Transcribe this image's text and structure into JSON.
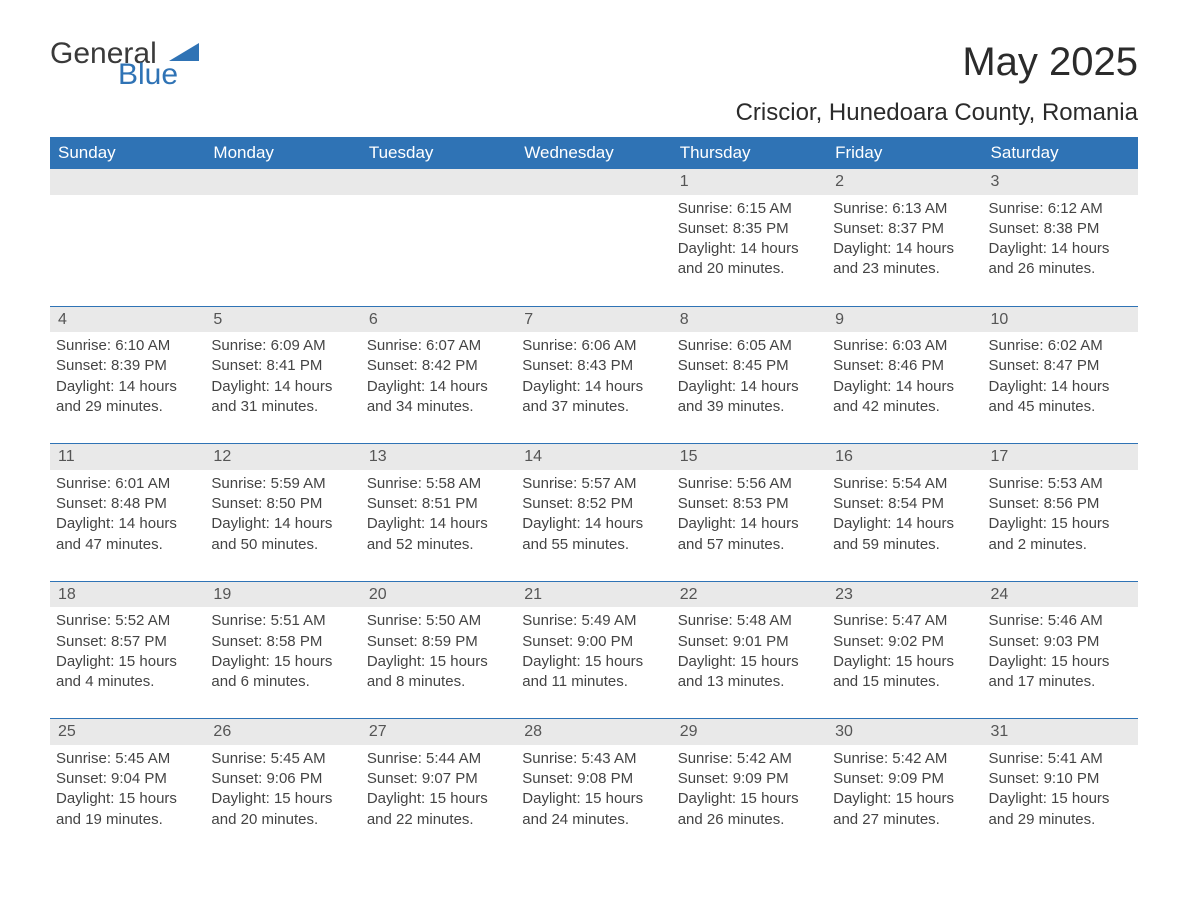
{
  "logo": {
    "text_general": "General",
    "text_blue": "Blue",
    "color_blue": "#2f73b5"
  },
  "title": "May 2025",
  "location": "Criscior, Hunedoara County, Romania",
  "headers": [
    "Sunday",
    "Monday",
    "Tuesday",
    "Wednesday",
    "Thursday",
    "Friday",
    "Saturday"
  ],
  "colors": {
    "header_bg": "#2f73b5",
    "header_fg": "#ffffff",
    "daynum_bg": "#e9e9e9",
    "row_sep": "#2f73b5",
    "text": "#444444",
    "background": "#ffffff"
  },
  "weeks": [
    [
      null,
      null,
      null,
      null,
      {
        "day": "1",
        "sunrise": "Sunrise: 6:15 AM",
        "sunset": "Sunset: 8:35 PM",
        "daylight": "Daylight: 14 hours and 20 minutes."
      },
      {
        "day": "2",
        "sunrise": "Sunrise: 6:13 AM",
        "sunset": "Sunset: 8:37 PM",
        "daylight": "Daylight: 14 hours and 23 minutes."
      },
      {
        "day": "3",
        "sunrise": "Sunrise: 6:12 AM",
        "sunset": "Sunset: 8:38 PM",
        "daylight": "Daylight: 14 hours and 26 minutes."
      }
    ],
    [
      {
        "day": "4",
        "sunrise": "Sunrise: 6:10 AM",
        "sunset": "Sunset: 8:39 PM",
        "daylight": "Daylight: 14 hours and 29 minutes."
      },
      {
        "day": "5",
        "sunrise": "Sunrise: 6:09 AM",
        "sunset": "Sunset: 8:41 PM",
        "daylight": "Daylight: 14 hours and 31 minutes."
      },
      {
        "day": "6",
        "sunrise": "Sunrise: 6:07 AM",
        "sunset": "Sunset: 8:42 PM",
        "daylight": "Daylight: 14 hours and 34 minutes."
      },
      {
        "day": "7",
        "sunrise": "Sunrise: 6:06 AM",
        "sunset": "Sunset: 8:43 PM",
        "daylight": "Daylight: 14 hours and 37 minutes."
      },
      {
        "day": "8",
        "sunrise": "Sunrise: 6:05 AM",
        "sunset": "Sunset: 8:45 PM",
        "daylight": "Daylight: 14 hours and 39 minutes."
      },
      {
        "day": "9",
        "sunrise": "Sunrise: 6:03 AM",
        "sunset": "Sunset: 8:46 PM",
        "daylight": "Daylight: 14 hours and 42 minutes."
      },
      {
        "day": "10",
        "sunrise": "Sunrise: 6:02 AM",
        "sunset": "Sunset: 8:47 PM",
        "daylight": "Daylight: 14 hours and 45 minutes."
      }
    ],
    [
      {
        "day": "11",
        "sunrise": "Sunrise: 6:01 AM",
        "sunset": "Sunset: 8:48 PM",
        "daylight": "Daylight: 14 hours and 47 minutes."
      },
      {
        "day": "12",
        "sunrise": "Sunrise: 5:59 AM",
        "sunset": "Sunset: 8:50 PM",
        "daylight": "Daylight: 14 hours and 50 minutes."
      },
      {
        "day": "13",
        "sunrise": "Sunrise: 5:58 AM",
        "sunset": "Sunset: 8:51 PM",
        "daylight": "Daylight: 14 hours and 52 minutes."
      },
      {
        "day": "14",
        "sunrise": "Sunrise: 5:57 AM",
        "sunset": "Sunset: 8:52 PM",
        "daylight": "Daylight: 14 hours and 55 minutes."
      },
      {
        "day": "15",
        "sunrise": "Sunrise: 5:56 AM",
        "sunset": "Sunset: 8:53 PM",
        "daylight": "Daylight: 14 hours and 57 minutes."
      },
      {
        "day": "16",
        "sunrise": "Sunrise: 5:54 AM",
        "sunset": "Sunset: 8:54 PM",
        "daylight": "Daylight: 14 hours and 59 minutes."
      },
      {
        "day": "17",
        "sunrise": "Sunrise: 5:53 AM",
        "sunset": "Sunset: 8:56 PM",
        "daylight": "Daylight: 15 hours and 2 minutes."
      }
    ],
    [
      {
        "day": "18",
        "sunrise": "Sunrise: 5:52 AM",
        "sunset": "Sunset: 8:57 PM",
        "daylight": "Daylight: 15 hours and 4 minutes."
      },
      {
        "day": "19",
        "sunrise": "Sunrise: 5:51 AM",
        "sunset": "Sunset: 8:58 PM",
        "daylight": "Daylight: 15 hours and 6 minutes."
      },
      {
        "day": "20",
        "sunrise": "Sunrise: 5:50 AM",
        "sunset": "Sunset: 8:59 PM",
        "daylight": "Daylight: 15 hours and 8 minutes."
      },
      {
        "day": "21",
        "sunrise": "Sunrise: 5:49 AM",
        "sunset": "Sunset: 9:00 PM",
        "daylight": "Daylight: 15 hours and 11 minutes."
      },
      {
        "day": "22",
        "sunrise": "Sunrise: 5:48 AM",
        "sunset": "Sunset: 9:01 PM",
        "daylight": "Daylight: 15 hours and 13 minutes."
      },
      {
        "day": "23",
        "sunrise": "Sunrise: 5:47 AM",
        "sunset": "Sunset: 9:02 PM",
        "daylight": "Daylight: 15 hours and 15 minutes."
      },
      {
        "day": "24",
        "sunrise": "Sunrise: 5:46 AM",
        "sunset": "Sunset: 9:03 PM",
        "daylight": "Daylight: 15 hours and 17 minutes."
      }
    ],
    [
      {
        "day": "25",
        "sunrise": "Sunrise: 5:45 AM",
        "sunset": "Sunset: 9:04 PM",
        "daylight": "Daylight: 15 hours and 19 minutes."
      },
      {
        "day": "26",
        "sunrise": "Sunrise: 5:45 AM",
        "sunset": "Sunset: 9:06 PM",
        "daylight": "Daylight: 15 hours and 20 minutes."
      },
      {
        "day": "27",
        "sunrise": "Sunrise: 5:44 AM",
        "sunset": "Sunset: 9:07 PM",
        "daylight": "Daylight: 15 hours and 22 minutes."
      },
      {
        "day": "28",
        "sunrise": "Sunrise: 5:43 AM",
        "sunset": "Sunset: 9:08 PM",
        "daylight": "Daylight: 15 hours and 24 minutes."
      },
      {
        "day": "29",
        "sunrise": "Sunrise: 5:42 AM",
        "sunset": "Sunset: 9:09 PM",
        "daylight": "Daylight: 15 hours and 26 minutes."
      },
      {
        "day": "30",
        "sunrise": "Sunrise: 5:42 AM",
        "sunset": "Sunset: 9:09 PM",
        "daylight": "Daylight: 15 hours and 27 minutes."
      },
      {
        "day": "31",
        "sunrise": "Sunrise: 5:41 AM",
        "sunset": "Sunset: 9:10 PM",
        "daylight": "Daylight: 15 hours and 29 minutes."
      }
    ]
  ]
}
